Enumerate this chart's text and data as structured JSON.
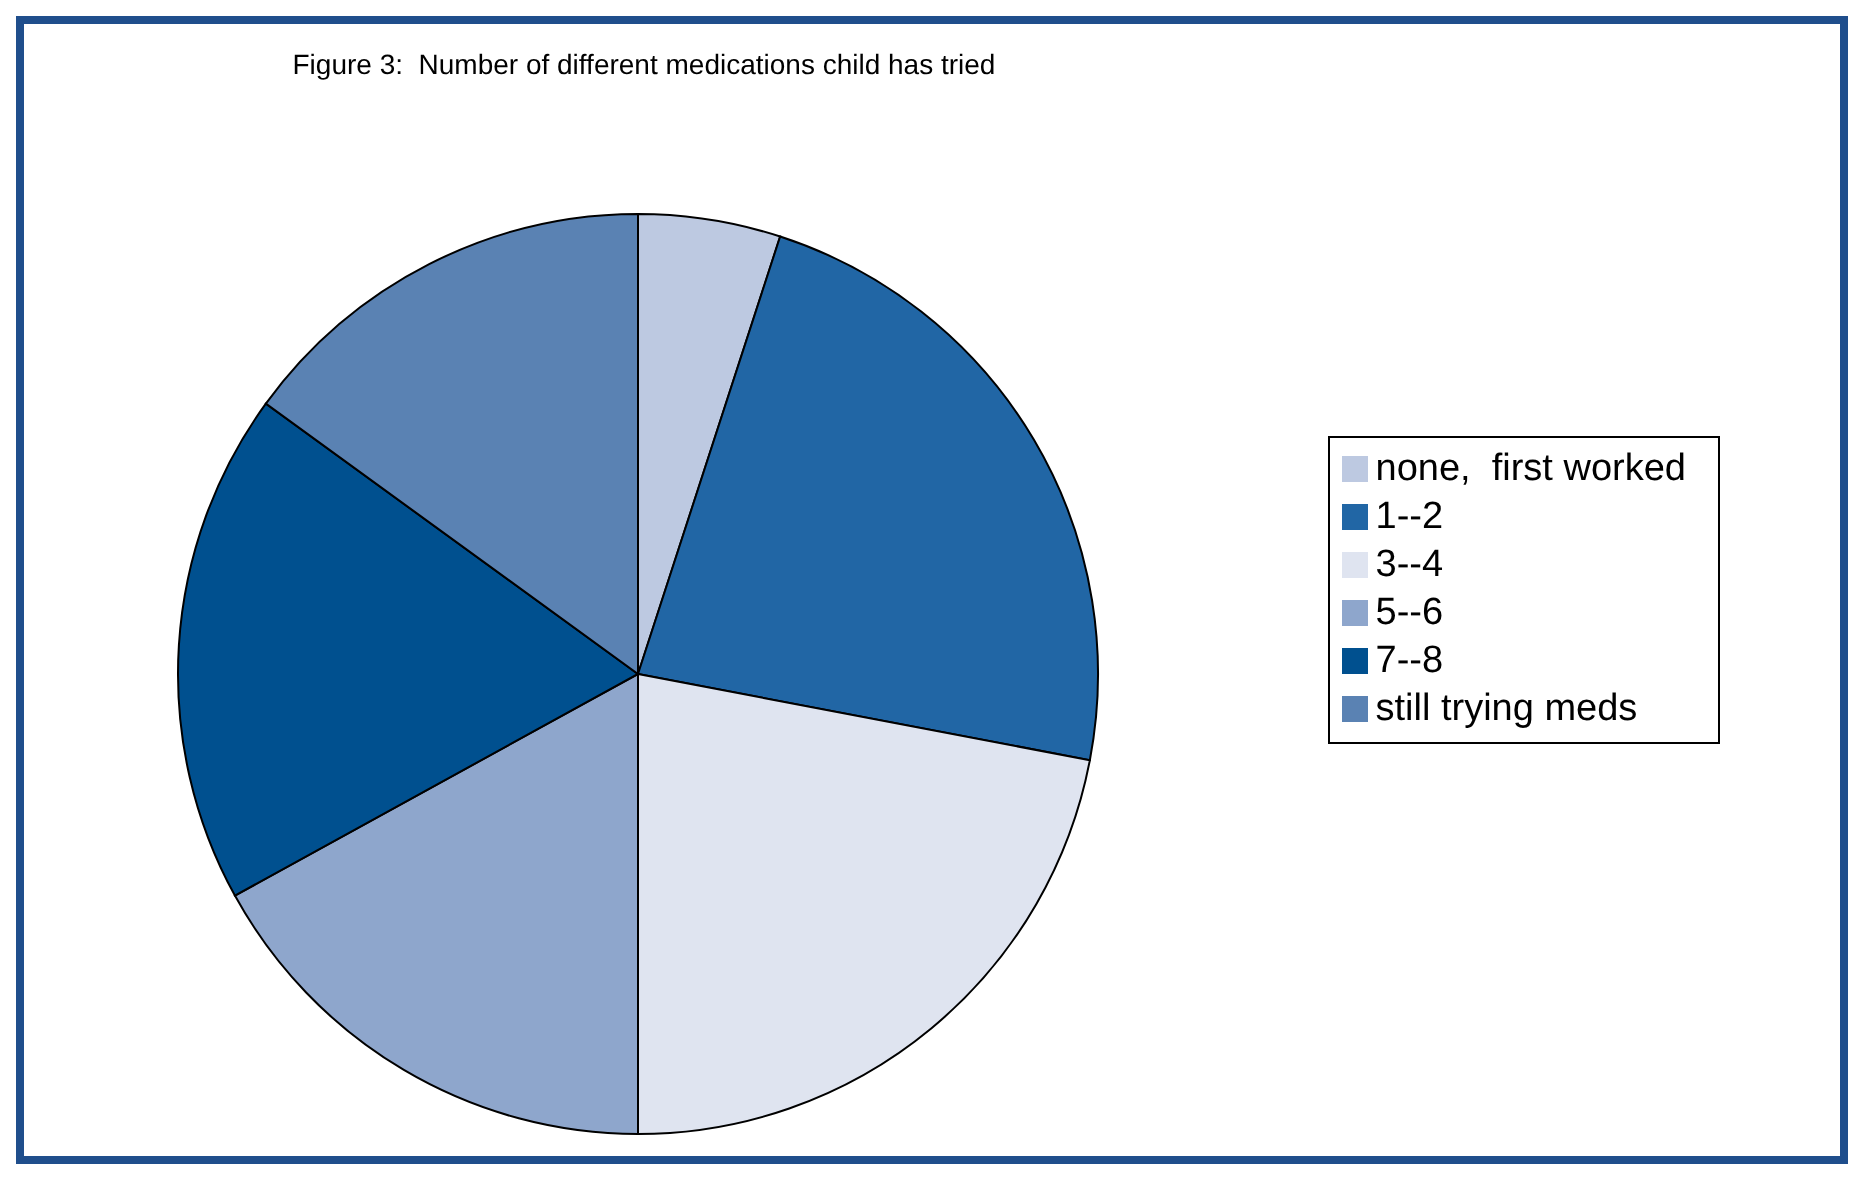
{
  "chart_data": {
    "type": "pie",
    "title": "Figure 3:  Number of different medications child has tried",
    "categories": [
      "none,  first worked",
      "1--2",
      "3--4",
      "5--6",
      "7--8",
      "still trying meds"
    ],
    "values": [
      5,
      23,
      22,
      17,
      18,
      15
    ],
    "colors": [
      "#bdc9e1",
      "#2166a5",
      "#dfe4f0",
      "#8ea6cc",
      "#00508f",
      "#5a82b3"
    ],
    "legend": "right"
  }
}
